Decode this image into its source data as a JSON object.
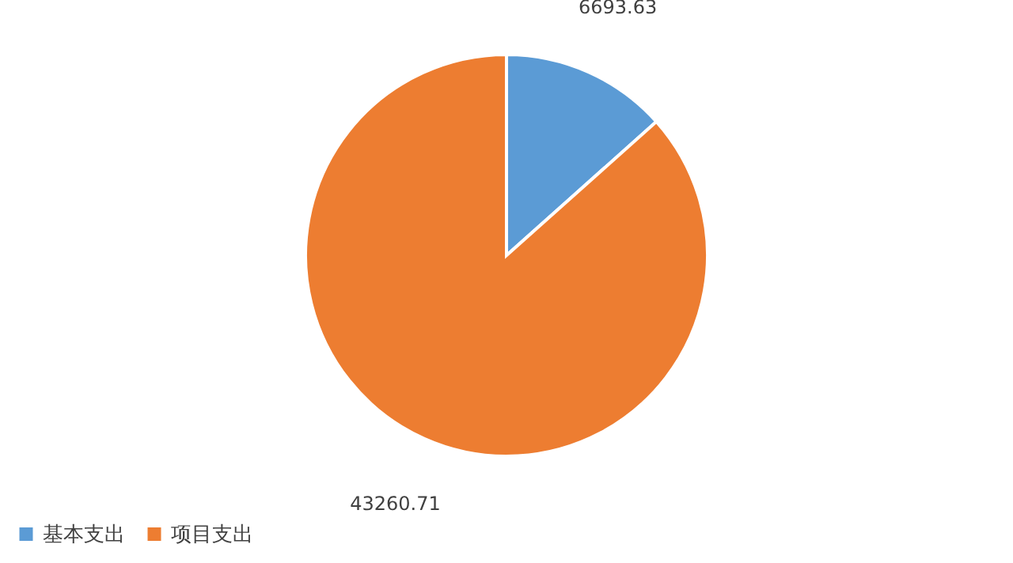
{
  "chart_data": {
    "type": "pie",
    "categories": [
      "基本支出",
      "项目支出"
    ],
    "values": [
      6693.63,
      43260.71
    ],
    "colors": [
      "#5b9bd5",
      "#ed7d31"
    ],
    "data_labels": true,
    "legend": "bottom"
  }
}
